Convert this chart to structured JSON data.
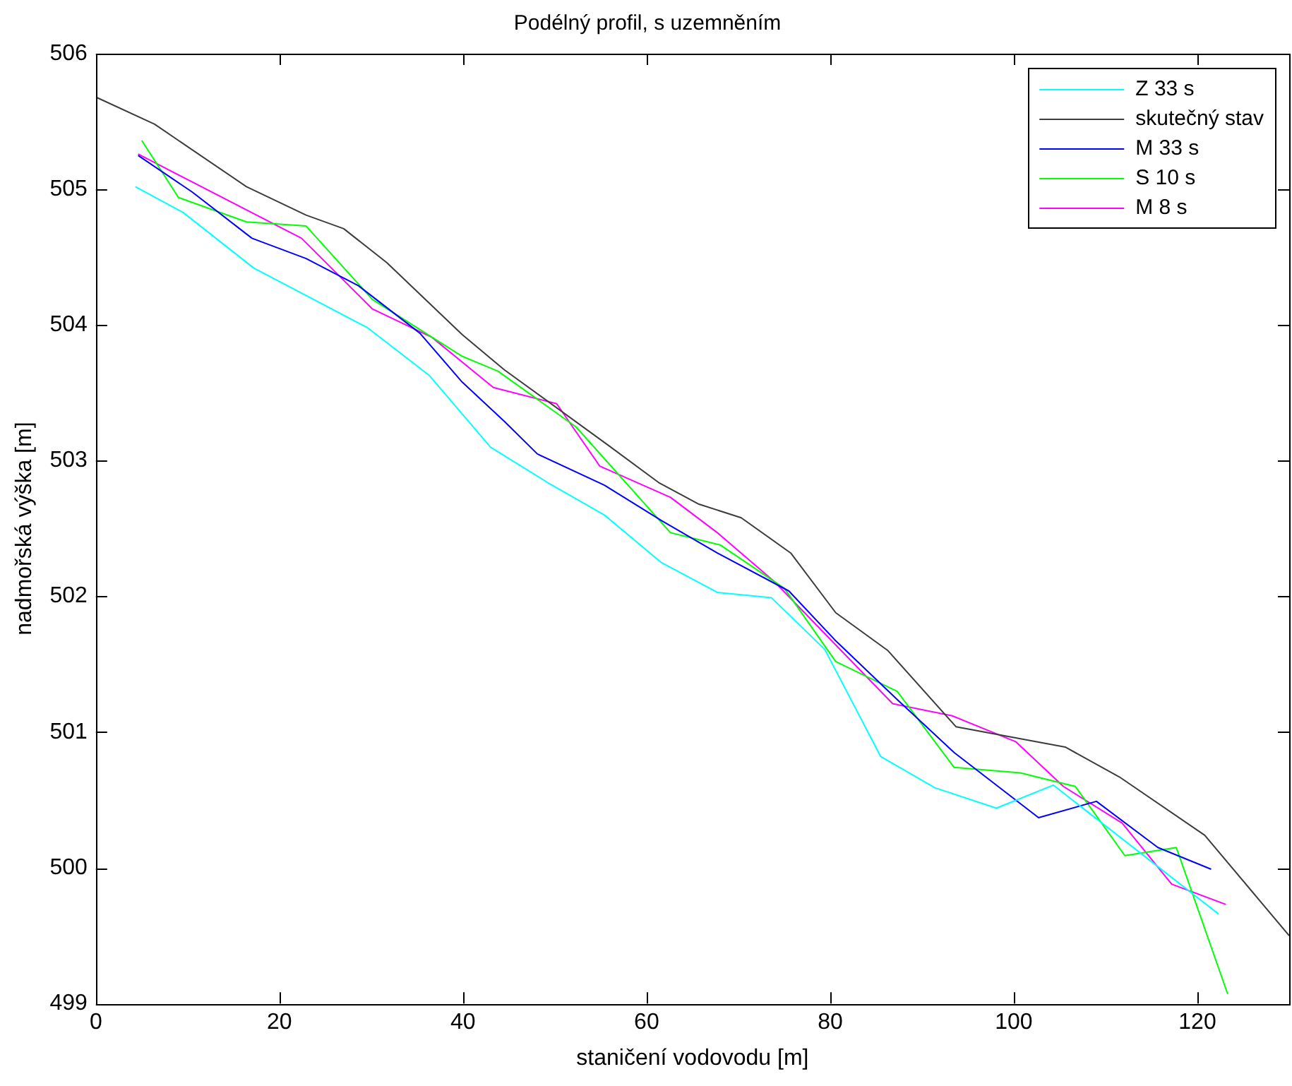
{
  "chart_data": {
    "type": "line",
    "title": "Podélný profil, s uzemněním",
    "xlabel": "staničení vodovodu [m]",
    "ylabel": "nadmořská výška [m]",
    "xlim": [
      0,
      130
    ],
    "xticks": [
      0,
      20,
      40,
      60,
      80,
      100,
      120
    ],
    "ylim": [
      499,
      506
    ],
    "yticks": [
      499,
      500,
      501,
      502,
      503,
      504,
      505,
      506
    ],
    "grid": false,
    "legend": "top right",
    "marker": "none",
    "line_style": "solid",
    "series": [
      {
        "name": "Z 33 s",
        "color": "#00ffff",
        "x": [
          4.3,
          9.5,
          17.2,
          29.6,
          36.3,
          43,
          49.2,
          55.4,
          61.6,
          67.7,
          73.6,
          79.4,
          85.5,
          91.4,
          98.1,
          104.3,
          122.3
        ],
        "values": [
          505.02,
          504.83,
          504.42,
          503.98,
          503.63,
          503.1,
          502.84,
          502.6,
          502.25,
          502.03,
          501.99,
          501.61,
          500.82,
          500.59,
          500.44,
          500.61,
          499.66
        ]
      },
      {
        "name": "skutečný stav",
        "color": "#3c3c3c",
        "x": [
          0,
          6.4,
          16.4,
          22.9,
          27,
          31.7,
          39.9,
          44.5,
          55.9,
          61.3,
          65.7,
          70.3,
          75.7,
          80.6,
          86.3,
          93.7,
          105.6,
          111.5,
          120.8,
          130
        ],
        "values": [
          505.68,
          505.48,
          505.02,
          504.81,
          504.71,
          504.46,
          503.93,
          503.67,
          503.11,
          502.84,
          502.68,
          502.58,
          502.32,
          501.88,
          501.6,
          501.04,
          500.89,
          500.67,
          500.24,
          499.5
        ]
      },
      {
        "name": "M 33 s",
        "color": "#0000ff",
        "x": [
          4.6,
          10.5,
          17,
          22.9,
          28.6,
          35.3,
          39.9,
          44.5,
          48.1,
          55.4,
          61.6,
          67.7,
          75.5,
          80.5,
          87.3,
          93.5,
          102.7,
          109,
          115.7,
          121.5
        ],
        "values": [
          505.25,
          504.98,
          504.64,
          504.49,
          504.29,
          503.94,
          503.58,
          503.29,
          503.05,
          502.82,
          502.56,
          502.32,
          502.04,
          501.68,
          501.24,
          500.85,
          500.37,
          500.49,
          500.15,
          499.99
        ]
      },
      {
        "name": "S 10 s",
        "color": "#00ff00",
        "x": [
          5,
          9,
          16.4,
          22.9,
          30.1,
          39.9,
          43.8,
          52.3,
          62.6,
          68,
          75,
          80.6,
          87.3,
          93.5,
          100.7,
          106.7,
          112.1,
          117.7,
          123.3
        ],
        "values": [
          505.36,
          504.94,
          504.76,
          504.73,
          504.19,
          503.77,
          503.66,
          503.25,
          502.47,
          502.38,
          502.06,
          501.52,
          501.3,
          500.74,
          500.7,
          500.6,
          500.09,
          500.15,
          499.07
        ]
      },
      {
        "name": "M 8 s",
        "color": "#ff00ff",
        "x": [
          4.6,
          22.4,
          30.1,
          36.6,
          43.3,
          50.2,
          54.9,
          62.6,
          67.7,
          73.9,
          86.8,
          93.3,
          100.2,
          105.4,
          111.8,
          117.2,
          123.1
        ],
        "values": [
          505.26,
          504.64,
          504.12,
          503.91,
          503.54,
          503.42,
          502.96,
          502.73,
          502.47,
          502.11,
          501.21,
          501.12,
          500.93,
          500.6,
          500.33,
          499.88,
          499.73
        ]
      }
    ]
  }
}
